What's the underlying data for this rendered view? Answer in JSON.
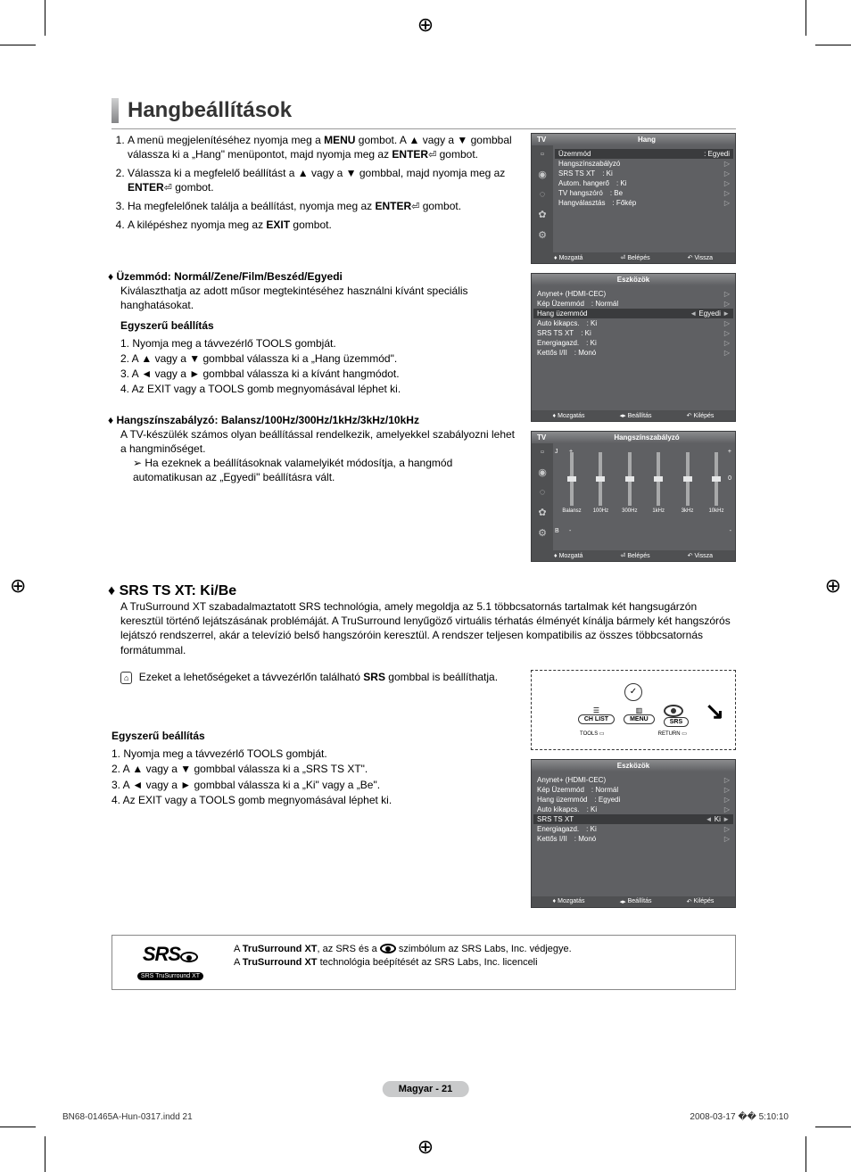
{
  "registration_symbol": "⊕",
  "title": "Hangbeállítások",
  "steps": [
    {
      "prefix": "A menü megjelenítéséhez nyomja meg a ",
      "b1": "MENU",
      "mid1": " gombot. A ▲ vagy a ▼ gombbal válassza ki a „Hang\" menüpontot, majd nyomja meg az ",
      "b2": "ENTER",
      "suffix": " gombot."
    },
    {
      "prefix": "Válassza ki a megfelelő beállítást a ▲ vagy a ▼ gombbal, majd nyomja meg az ",
      "b1": "ENTER",
      "suffix": " gombot."
    },
    {
      "prefix": "Ha megfelelőnek találja a beállítást, nyomja meg az ",
      "b1": "ENTER",
      "suffix": " gombot."
    },
    {
      "prefix": "A kilépéshez nyomja meg az ",
      "b1": "EXIT",
      "suffix": " gombot."
    }
  ],
  "mode": {
    "title": "Üzemmód: Normál/Zene/Film/Beszéd/Egyedi",
    "desc": "Kiválaszthatja az adott műsor megtekintéséhez használni kívánt speciális hanghatásokat.",
    "easy_title": "Egyszerű beállítás",
    "easy": [
      "1. Nyomja meg a távvezérlő TOOLS gombját.",
      "2. A ▲ vagy a ▼ gombbal válassza ki a „Hang üzemmód\".",
      "3. A ◄ vagy a ► gombbal válassza ki a kívánt hangmódot.",
      "4. Az EXIT vagy a TOOLS gomb megnyomásával léphet ki."
    ]
  },
  "eq": {
    "title": "Hangszínszabályzó: Balansz/100Hz/300Hz/1kHz/3kHz/10kHz",
    "desc1": "A TV-készülék számos olyan beállítással rendelkezik, amelyekkel szabályozni lehet a hangminőséget.",
    "desc2": "Ha ezeknek a beállításoknak valamelyikét módosítja, a hangmód automatikusan az „Egyedi\" beállításra vált."
  },
  "srs": {
    "title": "SRS TS XT: Ki/Be",
    "desc": "A TruSurround XT szabadalmaztatott SRS technológia, amely megoldja az 5.1 többcsatornás tartalmak két hangsugárzón keresztül történő lejátszásának problémáját. A TruSurround lenyűgöző virtuális térhatás élményét kínálja bármely két hangszórós lejátszó rendszerrel, akár a televízió belső hangszóróin keresztül. A rendszer teljesen kompatibilis az összes többcsatornás formátummal.",
    "remote_note_pre": "Ezeket a lehetőségeket a távvezérlőn található ",
    "remote_note_b": "SRS",
    "remote_note_post": " gombbal is beállíthatja.",
    "easy_title": "Egyszerű beállítás",
    "easy": [
      "1. Nyomja meg a távvezérlő TOOLS gombját.",
      "2. A ▲ vagy a ▼ gombbal válassza ki a „SRS TS XT\".",
      "3. A ◄ vagy a ► gombbal válassza ki a „Ki\" vagy a „Be\".",
      "4. Az EXIT vagy a TOOLS gomb megnyomásával léphet ki."
    ]
  },
  "srs_logo": {
    "big": "SRS",
    "pill": "SRS TruSurround XT"
  },
  "srs_trademark": {
    "l1_pre": "A ",
    "l1_b": "TruSurround XT",
    "l1_mid": ", az SRS és a ",
    "l1_post": " szimbólum az SRS Labs, Inc. védjegye.",
    "l2_pre": "A ",
    "l2_b": "TruSurround XT",
    "l2_post": " technológia beépítését az SRS Labs, Inc. licenceli"
  },
  "osd_hang": {
    "tv": "TV",
    "title": "Hang",
    "rows": [
      {
        "lbl": "Üzemmód",
        "val": ": Egyedi",
        "hl": true
      },
      {
        "lbl": "Hangszínszabályzó",
        "val": ""
      },
      {
        "lbl": "SRS TS XT",
        "val": ": Ki"
      },
      {
        "lbl": "Autom. hangerő",
        "val": ": Ki"
      },
      {
        "lbl": "TV hangszóró",
        "val": ": Be"
      },
      {
        "lbl": "Hangválasztás",
        "val": ": Főkép"
      }
    ],
    "footer": [
      "Mozgatá",
      "Belépés",
      "Vissza"
    ]
  },
  "osd_tools1": {
    "title": "Eszközök",
    "rows": [
      {
        "lbl": "Anynet+ (HDMI-CEC)",
        "val": ""
      },
      {
        "lbl": "Kép Üzemmód",
        "val": ": Normál"
      },
      {
        "lbl": "Hang üzemmód",
        "val": "Egyedi",
        "hl": true,
        "arrows": true
      },
      {
        "lbl": "Auto kikapcs.",
        "val": ": Ki"
      },
      {
        "lbl": "SRS TS XT",
        "val": ": Ki"
      },
      {
        "lbl": "Energiagazd.",
        "val": ": Ki"
      },
      {
        "lbl": "Kettős I/II",
        "val": ": Monó"
      }
    ],
    "footer": [
      "Mozgatás",
      "Beállítás",
      "Kilépés"
    ]
  },
  "osd_eq": {
    "tv": "TV",
    "title": "Hangszínszabályzó",
    "labels": [
      "Balansz",
      "100Hz",
      "300Hz",
      "1kHz",
      "3kHz",
      "10kHz"
    ],
    "footer": [
      "Mozgatá",
      "Belépés",
      "Vissza"
    ],
    "side_j": "J",
    "side_b": "B",
    "plus": "+",
    "zero": "0",
    "minus": "-"
  },
  "osd_tools2": {
    "title": "Eszközök",
    "rows": [
      {
        "lbl": "Anynet+ (HDMI-CEC)",
        "val": ""
      },
      {
        "lbl": "Kép Üzemmód",
        "val": ": Normál"
      },
      {
        "lbl": "Hang üzemmód",
        "val": ": Egyedi"
      },
      {
        "lbl": "Auto kikapcs.",
        "val": ": Ki"
      },
      {
        "lbl": "SRS TS XT",
        "val": "Ki",
        "hl": true,
        "arrows": true
      },
      {
        "lbl": "Energiagazd.",
        "val": ": Ki"
      },
      {
        "lbl": "Kettős I/II",
        "val": ": Monó"
      }
    ],
    "footer": [
      "Mozgatás",
      "Beállítás",
      "Kilépés"
    ]
  },
  "remote": {
    "chlist": "CH LIST",
    "menu": "MENU",
    "srs": "SRS",
    "tools": "TOOLS",
    "return": "RETURN"
  },
  "page_badge": "Magyar -  21",
  "footer_left": "BN68-01465A-Hun-0317.indd   21",
  "footer_right": "2008-03-17   �� 5:10:10",
  "colors": {
    "osd_bg": "#5f6063",
    "osd_dark": "#4f5052",
    "osd_hl": "#3a3b3d",
    "badge_bg": "#c9cacb",
    "title_grad_top": "#cfd0d1",
    "title_grad_bot": "#848587"
  }
}
